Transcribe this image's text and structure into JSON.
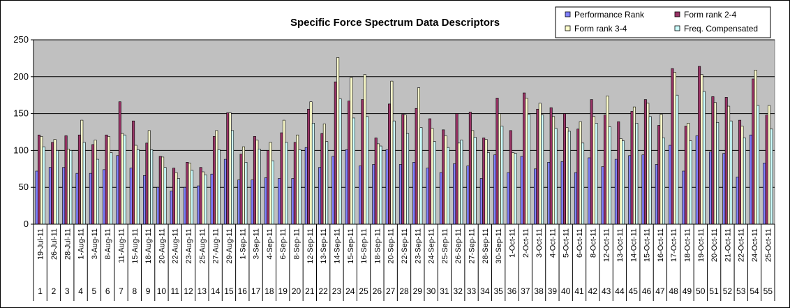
{
  "chart_data": {
    "type": "bar",
    "title": "Specific Force Spectrum Data Descriptors",
    "xlabel": "",
    "ylabel": "",
    "ylim": [
      0,
      250
    ],
    "yticks": [
      0,
      50,
      100,
      150,
      200,
      250
    ],
    "grid": true,
    "legend_position": "top-right",
    "categories": [
      "1",
      "2",
      "3",
      "4",
      "5",
      "6",
      "7",
      "8",
      "9",
      "10",
      "11",
      "12",
      "13",
      "14",
      "15",
      "16",
      "17",
      "18",
      "19",
      "20",
      "21",
      "22",
      "23",
      "24",
      "25",
      "26",
      "27",
      "28",
      "29",
      "30",
      "31",
      "32",
      "33",
      "34",
      "35",
      "36",
      "37",
      "38",
      "39",
      "40",
      "41",
      "42",
      "43",
      "44",
      "45",
      "46",
      "47",
      "48",
      "49",
      "50",
      "51",
      "52",
      "53",
      "54",
      "55"
    ],
    "dates": [
      "19-Jul-11",
      "26-Jul-11",
      "28-Jul-11",
      "1-Aug-11",
      "3-Aug-11",
      "8-Aug-11",
      "11-Aug-11",
      "15-Aug-11",
      "18-Aug-11",
      "20-Aug-11",
      "22-Aug-11",
      "23-Aug-11",
      "25-Aug-11",
      "27-Aug-11",
      "29-Aug-11",
      "1-Sep-11",
      "3-Sep-11",
      "4-Sep-11",
      "6-Sep-11",
      "8-Sep-11",
      "12-Sep-11",
      "13-Sep-11",
      "14-Sep-11",
      "15-Sep-11",
      "16-Sep-11",
      "18-Sep-11",
      "20-Sep-11",
      "22-Sep-11",
      "23-Sep-11",
      "24-Sep-11",
      "25-Sep-11",
      "26-Sep-11",
      "27-Sep-11",
      "28-Sep-11",
      "30-Sep-11",
      "1-Oct-11",
      "2-Oct-11",
      "3-Oct-11",
      "4-Oct-11",
      "5-Oct-11",
      "6-Oct-11",
      "8-Oct-11",
      "12-Oct-11",
      "13-Oct-11",
      "14-Oct-11",
      "15-Oct-11",
      "16-Oct-11",
      "17-Oct-11",
      "18-Oct-11",
      "19-Oct-11",
      "20-Oct-11",
      "21-Oct-11",
      "22-Oct-11",
      "24-Oct-11",
      "25-Oct-11"
    ],
    "series": [
      {
        "name": "Performance Rank",
        "color": "#8080ff",
        "values": [
          72,
          77,
          77,
          69,
          69,
          74,
          93,
          76,
          66,
          50,
          45,
          50,
          52,
          68,
          88,
          60,
          60,
          63,
          62,
          62,
          104,
          77,
          92,
          101,
          79,
          81,
          101,
          81,
          84,
          76,
          70,
          82,
          79,
          62,
          94,
          70,
          92,
          75,
          84,
          85,
          70,
          90,
          78,
          88,
          93,
          94,
          81,
          107,
          72,
          120,
          98,
          96,
          64,
          121,
          83
        ]
      },
      {
        "name": "Form rank 2-4",
        "color": "#993366",
        "values": [
          121,
          111,
          120,
          121,
          108,
          121,
          166,
          140,
          110,
          92,
          76,
          84,
          77,
          119,
          151,
          95,
          119,
          100,
          124,
          111,
          156,
          123,
          193,
          167,
          169,
          117,
          163,
          149,
          157,
          143,
          128,
          150,
          152,
          117,
          171,
          127,
          178,
          156,
          158,
          150,
          129,
          169,
          148,
          139,
          153,
          169,
          134,
          211,
          133,
          214,
          173,
          172,
          141,
          197,
          148
        ]
      },
      {
        "name": "Form rank 3-4",
        "color": "#ffffcc",
        "values": [
          119,
          115,
          102,
          141,
          114,
          119,
          123,
          107,
          127,
          91,
          70,
          83,
          71,
          127,
          151,
          105,
          114,
          111,
          141,
          121,
          166,
          136,
          226,
          199,
          203,
          109,
          194,
          148,
          185,
          130,
          120,
          110,
          127,
          115,
          150,
          97,
          171,
          164,
          146,
          131,
          139,
          146,
          174,
          116,
          159,
          164,
          149,
          206,
          137,
          203,
          165,
          160,
          133,
          209,
          161
        ]
      },
      {
        "name": "Freq. Compensated",
        "color": "#ccffff",
        "values": [
          105,
          100,
          100,
          111,
          88,
          97,
          121,
          101,
          101,
          77,
          62,
          73,
          67,
          101,
          127,
          84,
          102,
          86,
          111,
          101,
          137,
          112,
          170,
          144,
          146,
          106,
          140,
          123,
          131,
          112,
          104,
          114,
          118,
          97,
          133,
          96,
          149,
          148,
          130,
          126,
          110,
          137,
          132,
          113,
          137,
          146,
          117,
          175,
          113,
          180,
          138,
          140,
          117,
          161,
          129
        ]
      }
    ]
  }
}
